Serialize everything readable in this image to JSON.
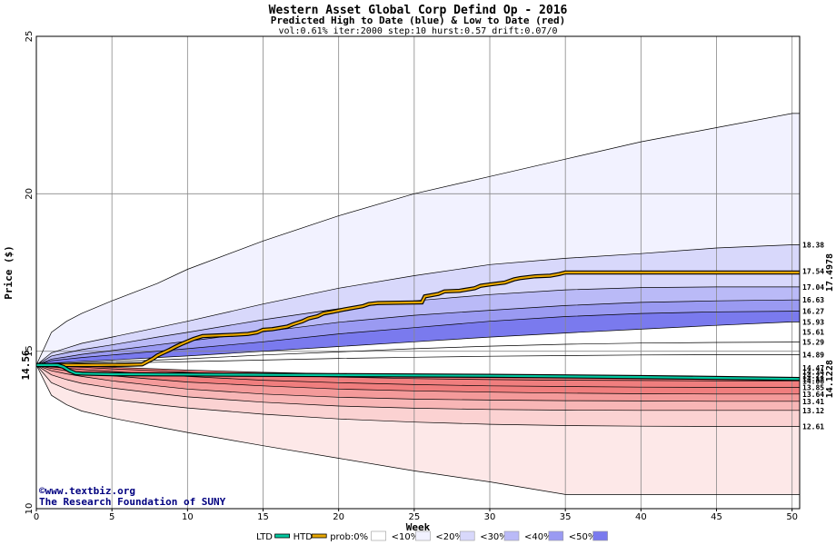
{
  "chart_data": {
    "type": "area",
    "title": "Western Asset Global Corp Defind Op - 2016",
    "subtitle": "Predicted High to Date (blue) &  Low to Date (red)",
    "params": "vol:0.61% iter:2000 step:10 hurst:0.57 drift:0.07/0",
    "xlabel": "Week",
    "ylabel": "Price ($)",
    "xlim": [
      0,
      50.5
    ],
    "ylim": [
      10,
      25
    ],
    "x_ticks": [
      0,
      5,
      10,
      15,
      20,
      25,
      30,
      35,
      40,
      45,
      50
    ],
    "y_ticks": [
      10,
      15,
      20,
      25
    ],
    "grid": true,
    "start_price": 14.56,
    "start_price_label": "14.56",
    "week_grid": [
      0,
      1,
      2,
      3,
      5,
      8,
      10,
      15,
      20,
      25,
      30,
      35,
      40,
      45,
      50,
      50.5
    ],
    "high_quantiles": [
      {
        "label": "<10%",
        "color": "#f2f2ff",
        "upper": [
          14.56,
          15.6,
          15.95,
          16.2,
          16.6,
          17.15,
          17.6,
          18.5,
          19.3,
          20.0,
          20.55,
          21.1,
          21.65,
          22.1,
          22.55,
          22.55
        ]
      },
      {
        "label": "<20%",
        "color": "#d8d8fb",
        "upper": [
          14.56,
          14.95,
          15.1,
          15.25,
          15.45,
          15.75,
          15.95,
          16.5,
          17.0,
          17.4,
          17.75,
          17.95,
          18.1,
          18.28,
          18.38,
          18.38
        ]
      },
      {
        "label": "<30%",
        "color": "#babaf7",
        "upper": [
          14.56,
          14.85,
          14.95,
          15.05,
          15.2,
          15.45,
          15.6,
          16.0,
          16.35,
          16.6,
          16.8,
          16.95,
          17.02,
          17.04,
          17.04,
          17.04
        ]
      },
      {
        "label": "<40%",
        "color": "#9a9af2",
        "upper": [
          14.56,
          14.75,
          14.82,
          14.9,
          15.02,
          15.2,
          15.32,
          15.62,
          15.92,
          16.14,
          16.3,
          16.45,
          16.55,
          16.6,
          16.63,
          16.63
        ]
      },
      {
        "label": "<50%",
        "color": "#7a7aee",
        "upper": [
          14.56,
          14.7,
          14.75,
          14.8,
          14.88,
          15.0,
          15.08,
          15.3,
          15.55,
          15.75,
          15.95,
          16.1,
          16.2,
          16.25,
          16.27,
          16.27
        ]
      }
    ],
    "high_median": [
      14.56,
      14.62,
      14.65,
      14.68,
      14.72,
      14.8,
      14.85,
      15.0,
      15.15,
      15.3,
      15.45,
      15.58,
      15.7,
      15.82,
      15.93,
      15.93
    ],
    "high_mid_lines": [
      [
        14.56,
        14.6,
        14.62,
        14.64,
        14.67,
        14.72,
        14.76,
        14.88,
        14.98,
        15.08,
        15.16,
        15.22,
        15.26,
        15.28,
        15.29,
        15.29
      ],
      [
        14.56,
        14.58,
        14.59,
        14.6,
        14.62,
        14.65,
        14.67,
        14.72,
        14.77,
        14.81,
        14.84,
        14.86,
        14.88,
        14.89,
        14.89,
        14.89
      ]
    ],
    "low_quantiles": [
      {
        "label": "<10%",
        "color": "#fde8e8",
        "lower": [
          14.56,
          13.6,
          13.3,
          13.1,
          12.88,
          12.6,
          12.42,
          12.0,
          11.6,
          11.2,
          10.85,
          10.45,
          10.45,
          10.45,
          10.45,
          10.45
        ]
      },
      {
        "label": "<20%",
        "color": "#fbd2d2",
        "lower": [
          14.56,
          14.0,
          13.8,
          13.65,
          13.48,
          13.3,
          13.2,
          13.0,
          12.85,
          12.75,
          12.68,
          12.64,
          12.62,
          12.61,
          12.61,
          12.61
        ]
      },
      {
        "label": "<30%",
        "color": "#f8b6b6",
        "lower": [
          14.56,
          14.25,
          14.1,
          13.98,
          13.83,
          13.66,
          13.55,
          13.38,
          13.26,
          13.19,
          13.15,
          13.13,
          13.12,
          13.12,
          13.12,
          13.12
        ]
      },
      {
        "label": "<40%",
        "color": "#f49a9a",
        "lower": [
          14.56,
          14.38,
          14.28,
          14.2,
          14.06,
          13.9,
          13.8,
          13.64,
          13.54,
          13.48,
          13.45,
          13.43,
          13.42,
          13.41,
          13.41,
          13.41
        ]
      },
      {
        "label": "<50%",
        "color": "#f07e7e",
        "lower": [
          14.56,
          14.45,
          14.38,
          14.32,
          14.22,
          14.1,
          14.02,
          13.9,
          13.8,
          13.74,
          13.7,
          13.67,
          13.65,
          13.64,
          13.64,
          13.64
        ]
      }
    ],
    "low_mid_lines": [
      [
        14.56,
        14.5,
        14.46,
        14.42,
        14.36,
        14.26,
        14.2,
        14.08,
        14.0,
        13.94,
        13.9,
        13.88,
        13.86,
        13.85,
        13.85,
        13.85
      ],
      [
        14.56,
        14.53,
        14.51,
        14.49,
        14.44,
        14.38,
        14.33,
        14.24,
        14.18,
        14.13,
        14.1,
        14.08,
        14.07,
        14.06,
        14.06,
        14.06
      ],
      [
        14.56,
        14.55,
        14.54,
        14.52,
        14.49,
        14.44,
        14.4,
        14.33,
        14.28,
        14.24,
        14.21,
        14.19,
        14.18,
        14.17,
        14.17,
        14.17
      ]
    ],
    "right_labels": [
      "18.38",
      "17.54",
      "17.04",
      "16.63",
      "16.27",
      "15.93",
      "15.61",
      "15.29",
      "14.89",
      "14.47",
      "14.34",
      "14.22",
      "14.13",
      "14.06",
      "13.85",
      "13.64",
      "13.41",
      "13.12",
      "12.61"
    ],
    "right_label_values": [
      18.38,
      17.54,
      17.04,
      16.63,
      16.27,
      15.93,
      15.61,
      15.29,
      14.89,
      14.47,
      14.34,
      14.22,
      14.13,
      14.06,
      13.85,
      13.64,
      13.41,
      13.12,
      12.61
    ],
    "series": [
      {
        "name": "HTD",
        "color": "#e8a800",
        "end_label": "17.4978",
        "x": [
          0,
          2,
          4,
          6,
          7,
          7.3,
          7.7,
          8,
          8.4,
          8.8,
          9.2,
          9.6,
          10,
          10.4,
          11,
          12,
          13,
          14,
          14.6,
          15,
          15.6,
          16.6,
          17,
          17.6,
          18,
          18.6,
          19,
          19.6,
          20.4,
          21,
          21.6,
          22,
          22.6,
          25.5,
          25.7,
          26.6,
          27,
          28,
          29,
          29.4,
          30,
          31,
          31.6,
          32,
          33,
          34,
          34.6,
          35,
          40,
          45,
          50.5
        ],
        "y": [
          14.56,
          14.56,
          14.56,
          14.57,
          14.58,
          14.66,
          14.76,
          14.86,
          14.95,
          15.04,
          15.14,
          15.23,
          15.31,
          15.39,
          15.48,
          15.5,
          15.52,
          15.55,
          15.6,
          15.68,
          15.7,
          15.78,
          15.86,
          15.95,
          16.04,
          16.11,
          16.2,
          16.25,
          16.33,
          16.38,
          16.43,
          16.5,
          16.53,
          16.55,
          16.74,
          16.82,
          16.9,
          16.92,
          17.0,
          17.08,
          17.12,
          17.18,
          17.28,
          17.32,
          17.38,
          17.4,
          17.45,
          17.5,
          17.5,
          17.5,
          17.5
        ]
      },
      {
        "name": "LTD",
        "color": "#00c8a0",
        "end_label": "14.1228",
        "x": [
          0,
          1.4,
          1.8,
          2.2,
          2.6,
          3,
          5,
          10,
          20,
          30,
          40,
          50.5
        ],
        "y": [
          14.56,
          14.56,
          14.5,
          14.38,
          14.3,
          14.29,
          14.27,
          14.26,
          14.24,
          14.22,
          14.18,
          14.12
        ]
      }
    ],
    "legend": {
      "placement": "bottom",
      "items": [
        {
          "label": "LTD",
          "kind": "line",
          "color": "#00c8a0"
        },
        {
          "label": "HTD",
          "kind": "line",
          "color": "#e8a800"
        },
        {
          "label": "prob:0%",
          "kind": "swatch",
          "color": "#ffffff"
        },
        {
          "label": "<10%",
          "kind": "swatch",
          "color": "#f2f2ff"
        },
        {
          "label": "<20%",
          "kind": "swatch",
          "color": "#d8d8fb"
        },
        {
          "label": "<30%",
          "kind": "swatch",
          "color": "#babaf7"
        },
        {
          "label": "<40%",
          "kind": "swatch",
          "color": "#9a9af2"
        },
        {
          "label": "<50%",
          "kind": "swatch",
          "color": "#7a7aee"
        }
      ]
    }
  },
  "credit": {
    "copyright_symbol": "©",
    "site": "www.textbiz.org",
    "org": "The Research Foundation of SUNY"
  }
}
